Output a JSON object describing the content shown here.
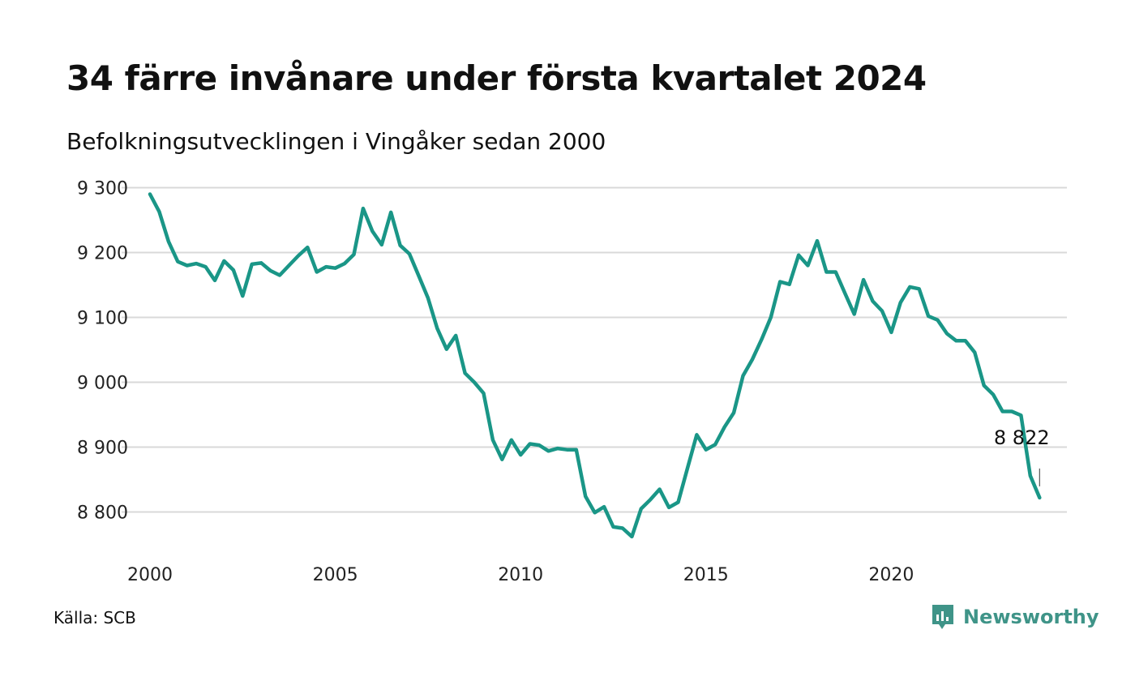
{
  "title": "34 färre invånare under första kvartalet 2024",
  "subtitle": "Befolkningsutvecklingen i Vingåker sedan 2000",
  "source": "Källa: SCB",
  "brand": {
    "name": "Newsworthy",
    "icon": "newsworthy-logo-icon",
    "color": "#3f9488"
  },
  "colors": {
    "line": "#1a9687",
    "grid": "#d9d9d9"
  },
  "chart_data": {
    "type": "line",
    "title": "34 färre invånare under första kvartalet 2024",
    "subtitle": "Befolkningsutvecklingen i Vingåker sedan 2000",
    "xlabel": "",
    "ylabel": "",
    "x_ticks": [
      2000,
      2005,
      2010,
      2015,
      2020
    ],
    "y_ticks": [
      8800,
      8900,
      9000,
      9100,
      9200,
      9300
    ],
    "y_tick_labels": [
      "8 800",
      "8 900",
      "9 000",
      "9 100",
      "9 200",
      "9 300"
    ],
    "xlim": [
      2000,
      2024.25
    ],
    "ylim": [
      8750,
      9310
    ],
    "grid": true,
    "end_label": "8 822",
    "series": [
      {
        "color": "#1a9687",
        "x": [
          2000.0,
          2000.25,
          2000.5,
          2000.75,
          2001.0,
          2001.25,
          2001.5,
          2001.75,
          2002.0,
          2002.25,
          2002.5,
          2002.75,
          2003.0,
          2003.25,
          2003.5,
          2003.75,
          2004.0,
          2004.25,
          2004.5,
          2004.75,
          2005.0,
          2005.25,
          2005.5,
          2005.75,
          2006.0,
          2006.25,
          2006.5,
          2006.75,
          2007.0,
          2007.25,
          2007.5,
          2007.75,
          2008.0,
          2008.25,
          2008.5,
          2008.75,
          2009.0,
          2009.25,
          2009.5,
          2009.75,
          2010.0,
          2010.25,
          2010.5,
          2010.75,
          2011.0,
          2011.25,
          2011.5,
          2011.75,
          2012.0,
          2012.25,
          2012.5,
          2012.75,
          2013.0,
          2013.25,
          2013.5,
          2013.75,
          2014.0,
          2014.25,
          2014.5,
          2014.75,
          2015.0,
          2015.25,
          2015.5,
          2015.75,
          2016.0,
          2016.25,
          2016.5,
          2016.75,
          2017.0,
          2017.25,
          2017.5,
          2017.75,
          2018.0,
          2018.25,
          2018.5,
          2018.75,
          2019.0,
          2019.25,
          2019.5,
          2019.75,
          2020.0,
          2020.25,
          2020.5,
          2020.75,
          2021.0,
          2021.25,
          2021.5,
          2021.75,
          2022.0,
          2022.25,
          2022.5,
          2022.75,
          2023.0,
          2023.25,
          2023.5,
          2023.75,
          2024.0
        ],
        "values": [
          9290,
          9263,
          9217,
          9186,
          9180,
          9183,
          9178,
          9157,
          9187,
          9173,
          9133,
          9182,
          9184,
          9172,
          9165,
          9180,
          9195,
          9208,
          9170,
          9178,
          9176,
          9183,
          9197,
          9268,
          9233,
          9212,
          9262,
          9211,
          9198,
          9164,
          9130,
          9083,
          9051,
          9072,
          9014,
          9000,
          8983,
          8911,
          8881,
          8911,
          8888,
          8905,
          8903,
          8894,
          8898,
          8896,
          8896,
          8824,
          8799,
          8808,
          8777,
          8775,
          8762,
          8805,
          8819,
          8835,
          8807,
          8815,
          8867,
          8919,
          8896,
          8904,
          8931,
          8953,
          9010,
          9035,
          9066,
          9100,
          9155,
          9151,
          9196,
          9180,
          9218,
          9170,
          9170,
          9137,
          9105,
          9158,
          9125,
          9110,
          9077,
          9123,
          9147,
          9144,
          9102,
          9096,
          9075,
          9064,
          9064,
          9046,
          8995,
          8981,
          8955,
          8955,
          8949,
          8856,
          8822
        ]
      }
    ]
  }
}
